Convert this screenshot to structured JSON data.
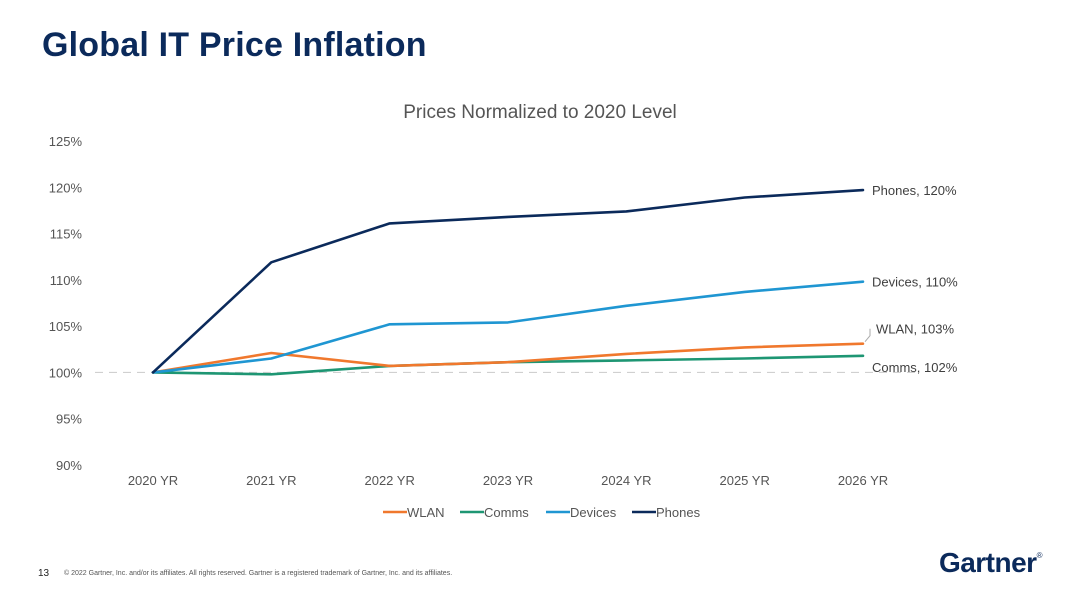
{
  "slide": {
    "title": "Global IT Price Inflation"
  },
  "footer": {
    "page_number": "13",
    "copyright": "© 2022 Gartner, Inc. and/or its affiliates. All rights reserved. Gartner is a registered trademark of Gartner, Inc. and its affiliates.",
    "logo_text": "Gartner",
    "logo_mark": "®"
  },
  "chart_data": {
    "type": "line",
    "title": "Prices Normalized to 2020 Level",
    "xlabel": "",
    "ylabel": "",
    "categories": [
      "2020 YR",
      "2021 YR",
      "2022 YR",
      "2023 YR",
      "2024 YR",
      "2025 YR",
      "2026 YR"
    ],
    "ylim": [
      90,
      125
    ],
    "yticks": [
      90,
      95,
      100,
      105,
      110,
      115,
      120,
      125
    ],
    "ytick_labels": [
      "90%",
      "95%",
      "100%",
      "105%",
      "110%",
      "115%",
      "120%",
      "125%"
    ],
    "grid": false,
    "reference_line": 100,
    "legend_position": "bottom",
    "series": [
      {
        "name": "WLAN",
        "color": "#f0782d",
        "values": [
          100,
          102.1,
          100.7,
          101.1,
          102.0,
          102.7,
          103.1
        ],
        "end_label": "WLAN, 103%"
      },
      {
        "name": "Comms",
        "color": "#1e9673",
        "values": [
          100,
          99.8,
          100.7,
          101.1,
          101.3,
          101.5,
          101.8
        ],
        "end_label": "Comms, 102%"
      },
      {
        "name": "Devices",
        "color": "#1f96d2",
        "values": [
          100,
          101.5,
          105.2,
          105.4,
          107.2,
          108.7,
          109.8
        ],
        "end_label": "Devices, 110%"
      },
      {
        "name": "Phones",
        "color": "#0b2a5b",
        "values": [
          100,
          111.9,
          116.1,
          116.8,
          117.4,
          118.9,
          119.7
        ],
        "end_label": "Phones, 120%"
      }
    ]
  }
}
